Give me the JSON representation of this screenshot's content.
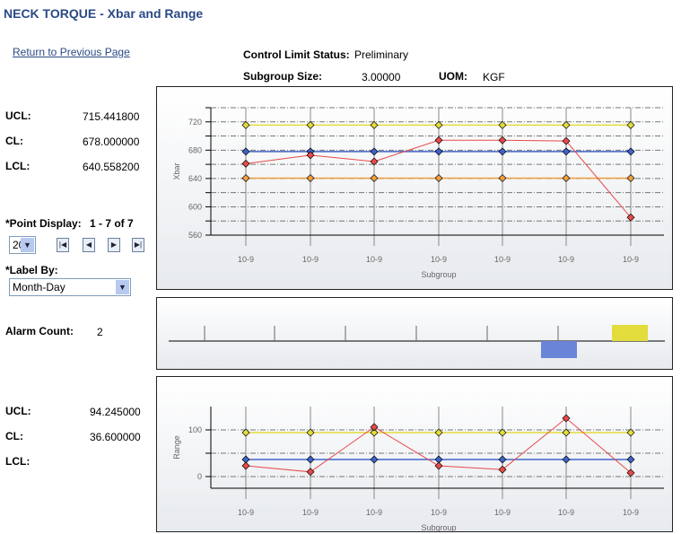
{
  "page": {
    "title": "NECK TORQUE - Xbar and Range",
    "return_link": "Return to Previous Page"
  },
  "header": {
    "status_label": "Control Limit Status:",
    "status_value": "Preliminary",
    "subgroup_label": "Subgroup Size:",
    "subgroup_value": "3.00000",
    "uom_label": "UOM:",
    "uom_value": "KGF"
  },
  "xbar_limits": {
    "ucl_label": "UCL:",
    "ucl": "715.441800",
    "cl_label": "CL:",
    "cl": "678.000000",
    "lcl_label": "LCL:",
    "lcl": "640.558200"
  },
  "range_limits": {
    "ucl_label": "UCL:",
    "ucl": "94.245000",
    "cl_label": "CL:",
    "cl": "36.600000",
    "lcl_label": "LCL:",
    "lcl": ""
  },
  "controls": {
    "point_display_label": "*Point Display:",
    "point_display_value": "1 - 7 of 7",
    "page_size": "20",
    "label_by_label": "*Label By:",
    "label_by_value": "Month-Day",
    "alarm_label": "Alarm Count:",
    "alarm_value": "2"
  },
  "colors": {
    "data": "#e84a4a",
    "ucl": "#e2dc3c",
    "cl": "#3f63c9",
    "lcl": "#f0a040"
  },
  "chart_data": [
    {
      "type": "line",
      "ylabel": "Xbar",
      "xlabel": "Subgroup",
      "categories": [
        "10-9",
        "10-9",
        "10-9",
        "10-9",
        "10-9",
        "10-9",
        "10-9"
      ],
      "ylim": [
        560,
        740
      ],
      "yticks": [
        560,
        600,
        640,
        680,
        720
      ],
      "grid": true,
      "series": [
        {
          "values": [
            661,
            673,
            664,
            694,
            694,
            693,
            585
          ]
        }
      ],
      "ucl": 715.4418,
      "cl": 678.0,
      "lcl": 640.5582
    },
    {
      "type": "line",
      "ylabel": "Range",
      "xlabel": "Subgroup",
      "categories": [
        "10-9",
        "10-9",
        "10-9",
        "10-9",
        "10-9",
        "10-9",
        "10-9"
      ],
      "ylim": [
        -25,
        150
      ],
      "yticks": [
        0,
        100
      ],
      "grid": true,
      "series": [
        {
          "values": [
            23,
            10,
            106,
            23,
            15,
            125,
            8
          ]
        }
      ],
      "ucl": 94.245,
      "cl": 36.6
    }
  ],
  "alarm_strip": {
    "markers": [
      {
        "point": 6,
        "color": "#6a84d8",
        "side": "below"
      },
      {
        "point": 7,
        "color": "#e2dc3c",
        "side": "above"
      }
    ]
  }
}
